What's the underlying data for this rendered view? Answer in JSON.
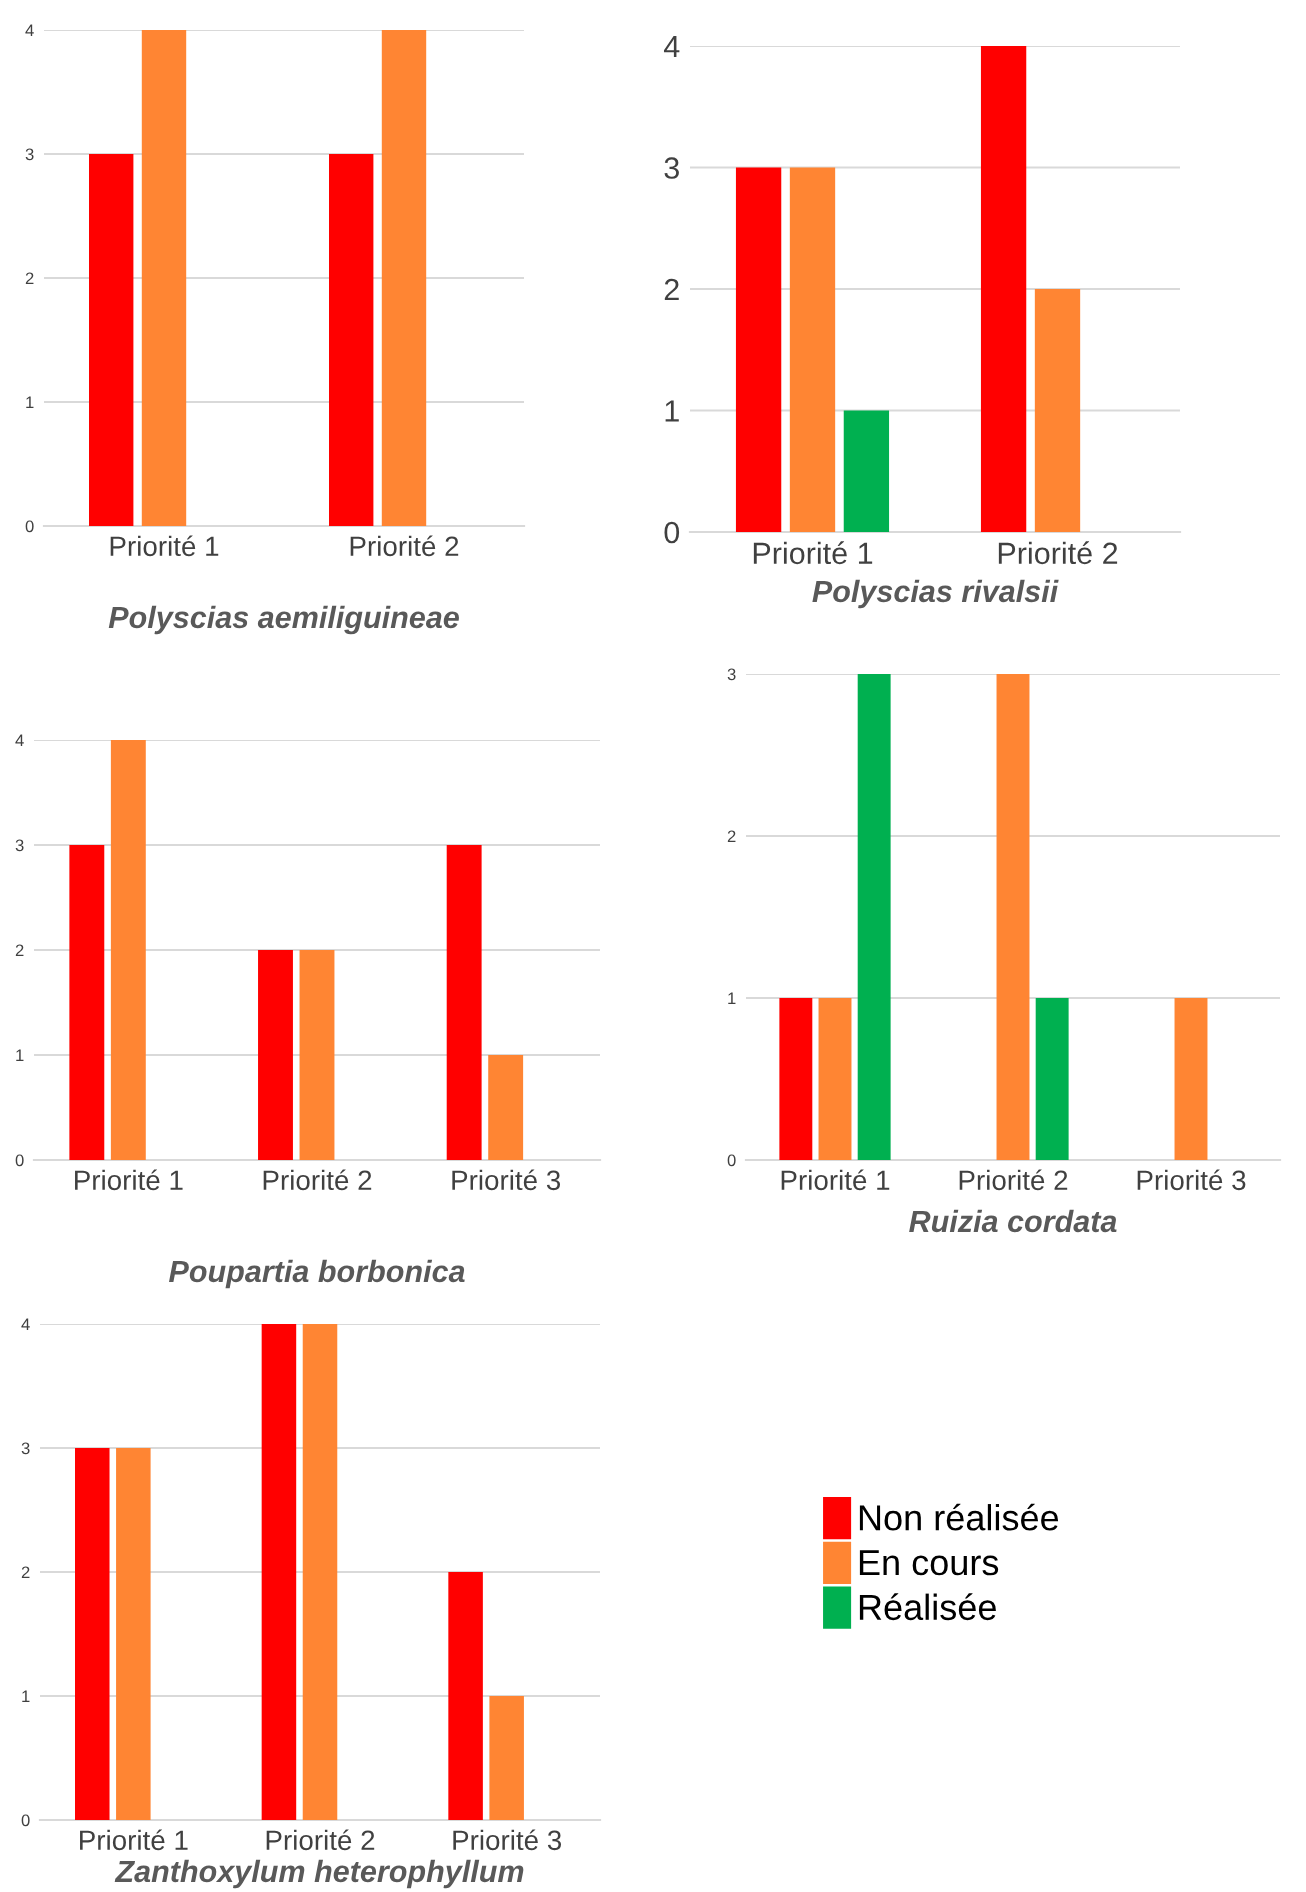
{
  "chart_data": [
    {
      "type": "bar",
      "title": "Polyscias aemiliguineae",
      "categories": [
        "Priorité 1",
        "Priorité 2"
      ],
      "ylim": [
        0,
        4
      ],
      "yticks": [
        0,
        1,
        2,
        3,
        4
      ],
      "grid": "y",
      "legend": false,
      "series": [
        {
          "color": "#ff0000",
          "values": [
            3,
            3
          ]
        },
        {
          "color": "#ff8533",
          "values": [
            4,
            4
          ]
        }
      ]
    },
    {
      "type": "bar",
      "title": "Polyscias rivalsii",
      "categories": [
        "Priorité 1",
        "Priorité 2"
      ],
      "ylim": [
        0,
        4
      ],
      "yticks": [
        0,
        1,
        2,
        3,
        4
      ],
      "grid": "y",
      "legend": false,
      "series": [
        {
          "color": "#ff0000",
          "values": [
            3,
            4
          ]
        },
        {
          "color": "#ff8533",
          "values": [
            3,
            2
          ]
        },
        {
          "color": "#00b050",
          "values": [
            1,
            null
          ]
        }
      ]
    },
    {
      "type": "bar",
      "title": "Poupartia borbonica",
      "categories": [
        "Priorité 1",
        "Priorité 2",
        "Priorité 3"
      ],
      "ylim": [
        0,
        4
      ],
      "yticks": [
        0,
        1,
        2,
        3,
        4
      ],
      "grid": "y",
      "legend": false,
      "series": [
        {
          "color": "#ff0000",
          "values": [
            3,
            2,
            3
          ]
        },
        {
          "color": "#ff8533",
          "values": [
            4,
            2,
            1
          ]
        }
      ]
    },
    {
      "type": "bar",
      "title": "Ruizia cordata",
      "categories": [
        "Priorité 1",
        "Priorité 2",
        "Priorité 3"
      ],
      "ylim": [
        0,
        3
      ],
      "yticks": [
        0,
        1,
        2,
        3
      ],
      "grid": "y",
      "legend": false,
      "series": [
        {
          "color": "#ff0000",
          "values": [
            1,
            null,
            null
          ]
        },
        {
          "color": "#ff8533",
          "values": [
            1,
            3,
            1
          ]
        },
        {
          "color": "#00b050",
          "values": [
            3,
            1,
            null
          ]
        }
      ]
    },
    {
      "type": "bar",
      "title": "Zanthoxylum heterophyllum",
      "categories": [
        "Priorité 1",
        "Priorité 2",
        "Priorité 3"
      ],
      "ylim": [
        0,
        4
      ],
      "yticks": [
        0,
        1,
        2,
        3,
        4
      ],
      "grid": "y",
      "legend": "right",
      "series": [
        {
          "name": "Non réalisée",
          "color": "#ff0000",
          "values": [
            3,
            4,
            2
          ]
        },
        {
          "name": "En cours",
          "color": "#ff8533",
          "values": [
            3,
            4,
            1
          ]
        },
        {
          "name": "Réalisée",
          "color": "#00b050",
          "values": [
            null,
            null,
            null
          ]
        }
      ]
    }
  ]
}
